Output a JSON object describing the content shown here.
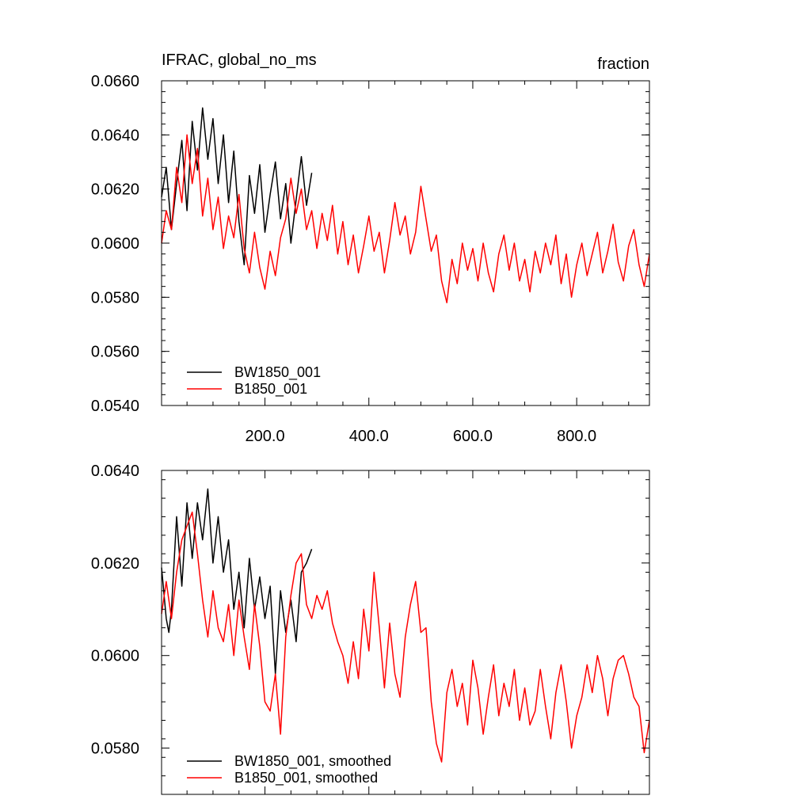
{
  "chart_data": [
    {
      "type": "line",
      "title": "IFRAC, global_no_ms",
      "units": "fraction",
      "xlim": [
        1,
        940
      ],
      "ylim": [
        0.054,
        0.066
      ],
      "xticks": [
        200,
        400,
        600,
        800
      ],
      "xtick_labels": [
        "200.0",
        "400.0",
        "600.0",
        "800.0"
      ],
      "yticks": [
        0.054,
        0.056,
        0.058,
        0.06,
        0.062,
        0.064,
        0.066
      ],
      "ytick_labels": [
        "0.0540",
        "0.0560",
        "0.0580",
        "0.0600",
        "0.0620",
        "0.0640",
        "0.0660"
      ],
      "legend_position": "bottom-left",
      "series": [
        {
          "name": "BW1850_001",
          "color": "#000000",
          "x": [
            1,
            10,
            20,
            30,
            40,
            50,
            60,
            70,
            80,
            90,
            100,
            110,
            120,
            130,
            140,
            150,
            160,
            170,
            180,
            190,
            200,
            210,
            220,
            230,
            240,
            250,
            260,
            270,
            280,
            290
          ],
          "y": [
            0.0617,
            0.0628,
            0.0605,
            0.0622,
            0.0638,
            0.0612,
            0.0645,
            0.0627,
            0.065,
            0.0631,
            0.0646,
            0.0622,
            0.064,
            0.0615,
            0.0634,
            0.0608,
            0.0592,
            0.0625,
            0.0611,
            0.0629,
            0.0604,
            0.0618,
            0.063,
            0.0609,
            0.0622,
            0.06,
            0.0616,
            0.0632,
            0.0614,
            0.0626
          ]
        },
        {
          "name": "B1850_001",
          "color": "#ff0000",
          "x": [
            1,
            10,
            20,
            30,
            40,
            50,
            60,
            70,
            80,
            90,
            100,
            110,
            120,
            130,
            140,
            150,
            160,
            170,
            180,
            190,
            200,
            210,
            220,
            230,
            240,
            250,
            260,
            270,
            280,
            290,
            300,
            310,
            320,
            330,
            340,
            350,
            360,
            370,
            380,
            390,
            400,
            410,
            420,
            430,
            440,
            450,
            460,
            470,
            480,
            490,
            500,
            510,
            520,
            530,
            540,
            550,
            560,
            570,
            580,
            590,
            600,
            610,
            620,
            630,
            640,
            650,
            660,
            670,
            680,
            690,
            700,
            710,
            720,
            730,
            740,
            750,
            760,
            770,
            780,
            790,
            800,
            810,
            820,
            830,
            840,
            850,
            860,
            870,
            880,
            890,
            900,
            910,
            920,
            930,
            940
          ],
          "y": [
            0.06,
            0.0612,
            0.0605,
            0.0628,
            0.0615,
            0.064,
            0.0622,
            0.0635,
            0.061,
            0.0624,
            0.0605,
            0.0617,
            0.0598,
            0.061,
            0.0602,
            0.0618,
            0.0598,
            0.0589,
            0.0604,
            0.0591,
            0.0583,
            0.0597,
            0.0588,
            0.0602,
            0.0609,
            0.0624,
            0.0611,
            0.062,
            0.0605,
            0.0612,
            0.0598,
            0.0611,
            0.0601,
            0.0614,
            0.0596,
            0.0608,
            0.0592,
            0.0603,
            0.0589,
            0.0599,
            0.061,
            0.0597,
            0.0604,
            0.0589,
            0.0601,
            0.0615,
            0.0603,
            0.061,
            0.0596,
            0.0604,
            0.0621,
            0.0609,
            0.0597,
            0.0603,
            0.0586,
            0.0578,
            0.0594,
            0.0585,
            0.06,
            0.059,
            0.0598,
            0.0586,
            0.06,
            0.0589,
            0.0582,
            0.0596,
            0.0603,
            0.059,
            0.06,
            0.0586,
            0.0594,
            0.0582,
            0.0597,
            0.0589,
            0.06,
            0.0592,
            0.0603,
            0.0585,
            0.0596,
            0.058,
            0.0592,
            0.06,
            0.0588,
            0.0596,
            0.0604,
            0.0589,
            0.0597,
            0.0607,
            0.0593,
            0.0586,
            0.0599,
            0.0605,
            0.0592,
            0.0584,
            0.0596
          ]
        }
      ]
    },
    {
      "type": "line",
      "title": "",
      "xlim": [
        1,
        940
      ],
      "ylim": [
        0.057,
        0.064
      ],
      "yticks": [
        0.058,
        0.06,
        0.062,
        0.064
      ],
      "ytick_labels": [
        "0.0580",
        "0.0600",
        "0.0620",
        "0.0640"
      ],
      "legend_position": "bottom-left",
      "series": [
        {
          "name": "BW1850_001, smoothed",
          "color": "#000000",
          "x": [
            1,
            10,
            15,
            20,
            30,
            40,
            50,
            60,
            70,
            80,
            90,
            100,
            110,
            120,
            130,
            140,
            150,
            160,
            170,
            180,
            190,
            200,
            210,
            220,
            230,
            240,
            250,
            260,
            270,
            280,
            290
          ],
          "y": [
            0.0619,
            0.0608,
            0.0605,
            0.061,
            0.063,
            0.0615,
            0.0633,
            0.0621,
            0.0633,
            0.0625,
            0.0636,
            0.062,
            0.063,
            0.0618,
            0.0625,
            0.061,
            0.0618,
            0.0606,
            0.0621,
            0.061,
            0.0617,
            0.0608,
            0.0615,
            0.0596,
            0.0614,
            0.0605,
            0.0612,
            0.0603,
            0.0618,
            0.062,
            0.0623
          ]
        },
        {
          "name": "B1850_001, smoothed",
          "color": "#ff0000",
          "x": [
            1,
            10,
            20,
            30,
            40,
            50,
            60,
            70,
            80,
            90,
            100,
            110,
            120,
            130,
            140,
            150,
            160,
            170,
            180,
            190,
            200,
            210,
            220,
            230,
            240,
            250,
            260,
            270,
            280,
            290,
            300,
            310,
            320,
            330,
            340,
            350,
            360,
            370,
            380,
            390,
            400,
            410,
            420,
            430,
            440,
            450,
            460,
            470,
            480,
            490,
            500,
            510,
            520,
            530,
            540,
            550,
            560,
            570,
            580,
            590,
            600,
            610,
            620,
            630,
            640,
            650,
            660,
            670,
            680,
            690,
            700,
            710,
            720,
            730,
            740,
            750,
            760,
            770,
            780,
            790,
            800,
            810,
            820,
            830,
            840,
            850,
            860,
            870,
            880,
            890,
            900,
            910,
            920,
            930,
            940
          ],
          "y": [
            0.0609,
            0.0616,
            0.0608,
            0.0618,
            0.0625,
            0.0628,
            0.0631,
            0.0622,
            0.0612,
            0.0604,
            0.0614,
            0.0606,
            0.0603,
            0.0611,
            0.06,
            0.0612,
            0.0604,
            0.0597,
            0.0611,
            0.0602,
            0.059,
            0.0588,
            0.0596,
            0.0583,
            0.0604,
            0.0613,
            0.062,
            0.0622,
            0.0611,
            0.0608,
            0.0613,
            0.061,
            0.0614,
            0.0607,
            0.0603,
            0.06,
            0.0594,
            0.0603,
            0.0595,
            0.061,
            0.0601,
            0.0618,
            0.0606,
            0.0593,
            0.0607,
            0.0596,
            0.0591,
            0.0604,
            0.0611,
            0.0616,
            0.0605,
            0.0606,
            0.059,
            0.0581,
            0.0577,
            0.0592,
            0.0597,
            0.0589,
            0.0594,
            0.0585,
            0.0599,
            0.0593,
            0.0583,
            0.0591,
            0.0598,
            0.0587,
            0.0594,
            0.0589,
            0.0597,
            0.0586,
            0.0593,
            0.0585,
            0.0588,
            0.0597,
            0.0589,
            0.0582,
            0.0592,
            0.0598,
            0.059,
            0.058,
            0.0587,
            0.0591,
            0.0598,
            0.0592,
            0.06,
            0.0595,
            0.0587,
            0.0595,
            0.0599,
            0.06,
            0.0596,
            0.0591,
            0.0589,
            0.0579,
            0.0586
          ]
        }
      ]
    }
  ]
}
